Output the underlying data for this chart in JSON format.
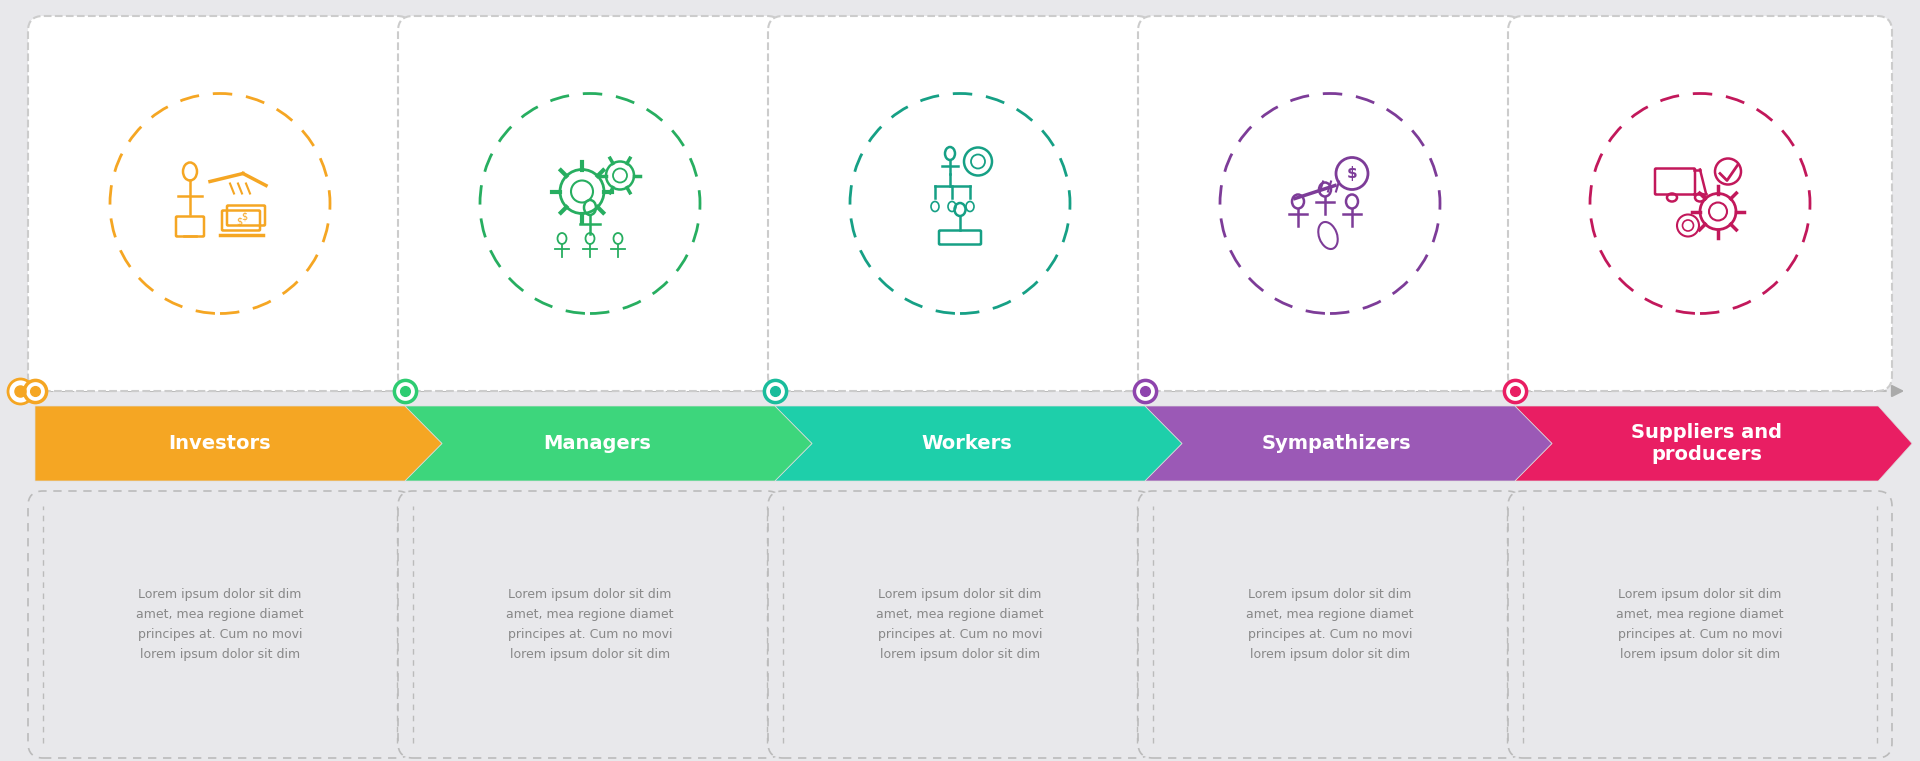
{
  "bg_color": "#e8e8eb",
  "steps": [
    {
      "label": "Investors",
      "color_light": "#f5a623",
      "color_dark": "#e8820c",
      "dot_color": "#f5a623",
      "icon_color": "#f5a623",
      "text": "Lorem ipsum dolor sit dim\namet, mea regione diamet\nprincipes at. Cum no movi\nlorem ipsum dolor sit dim"
    },
    {
      "label": "Managers",
      "color_light": "#3dd67c",
      "color_dark": "#27ae60",
      "dot_color": "#2ecc71",
      "icon_color": "#27ae60",
      "text": "Lorem ipsum dolor sit dim\namet, mea regione diamet\nprincipes at. Cum no movi\nlorem ipsum dolor sit dim"
    },
    {
      "label": "Workers",
      "color_light": "#1ecfaa",
      "color_dark": "#16a085",
      "dot_color": "#1abc9c",
      "icon_color": "#16a085",
      "text": "Lorem ipsum dolor sit dim\namet, mea regione diamet\nprincipes at. Cum no movi\nlorem ipsum dolor sit dim"
    },
    {
      "label": "Sympathizers",
      "color_light": "#9b59b6",
      "color_dark": "#7d3c98",
      "dot_color": "#8e44ad",
      "icon_color": "#7d3c98",
      "text": "Lorem ipsum dolor sit dim\namet, mea regione diamet\nprincipes at. Cum no movi\nlorem ipsum dolor sit dim"
    },
    {
      "label": "Suppliers and\nproducers",
      "color_light": "#e91e63",
      "color_dark": "#c2185b",
      "dot_color": "#e91e63",
      "icon_color": "#c2185b",
      "text": "Lorem ipsum dolor sit dim\namet, mea regione diamet\nprincipes at. Cum no movi\nlorem ipsum dolor sit dim"
    }
  ]
}
